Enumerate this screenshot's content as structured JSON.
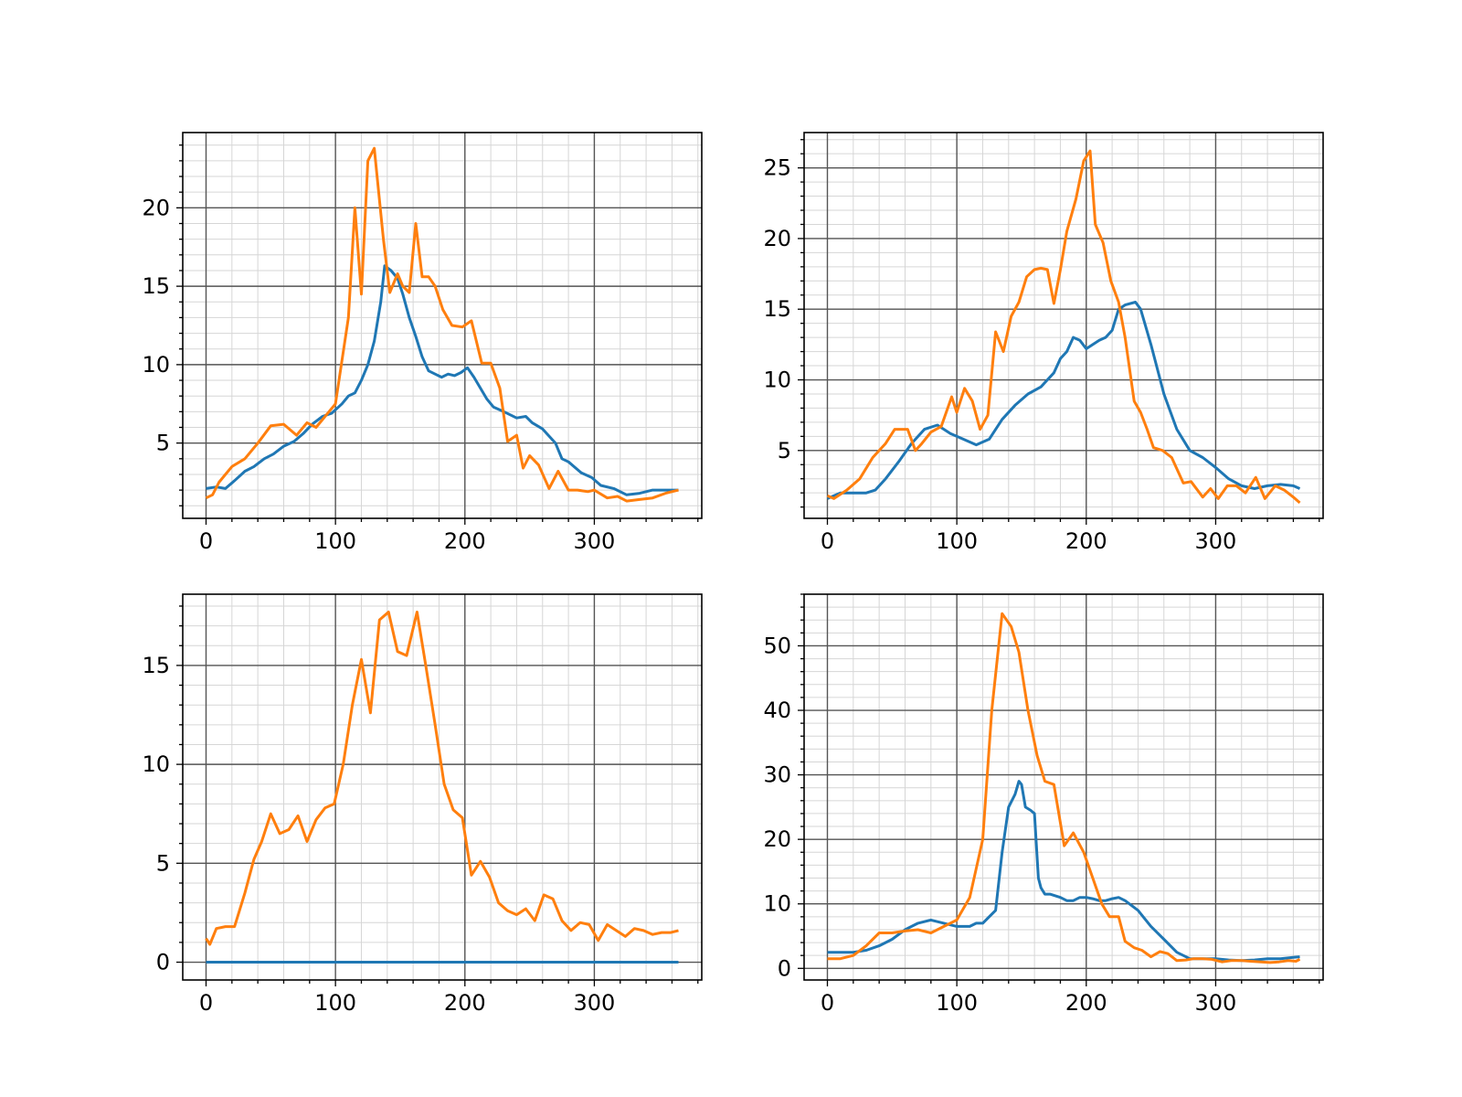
{
  "colors": {
    "series_blue": "#1f77b4",
    "series_orange": "#ff7f0e",
    "major_grid": "#555555",
    "minor_grid": "#d6d6d6"
  },
  "chart_data": [
    {
      "type": "line",
      "grid": "major and minor",
      "xlim": [
        -18,
        383
      ],
      "ylim": [
        0.2,
        24.8
      ],
      "xticks": [
        0,
        100,
        200,
        300
      ],
      "yticks": [
        5,
        10,
        15,
        20
      ],
      "xtick_labels": [
        "0",
        "100",
        "200",
        "300"
      ],
      "ytick_labels": [
        "5",
        "10",
        "15",
        "20"
      ],
      "series": [
        {
          "color": "#1f77b4",
          "x": [
            0,
            8,
            15,
            22,
            30,
            37,
            45,
            52,
            60,
            68,
            75,
            82,
            90,
            97,
            105,
            110,
            115,
            120,
            125,
            130,
            135,
            138,
            143,
            148,
            152,
            157,
            162,
            167,
            172,
            177,
            182,
            187,
            192,
            197,
            202,
            207,
            212,
            217,
            222,
            230,
            240,
            247,
            252,
            260,
            270,
            275,
            280,
            290,
            298,
            305,
            315,
            325,
            335,
            345,
            355,
            365
          ],
          "y": [
            2.1,
            2.2,
            2.1,
            2.6,
            3.2,
            3.5,
            4.0,
            4.3,
            4.8,
            5.1,
            5.6,
            6.2,
            6.7,
            6.9,
            7.5,
            8.0,
            8.2,
            9.0,
            10.0,
            11.5,
            14.0,
            16.3,
            16.0,
            15.5,
            14.5,
            13.0,
            11.8,
            10.5,
            9.6,
            9.4,
            9.2,
            9.4,
            9.3,
            9.5,
            9.8,
            9.2,
            8.5,
            7.8,
            7.3,
            7.0,
            6.6,
            6.7,
            6.3,
            5.9,
            5.0,
            4.0,
            3.8,
            3.1,
            2.8,
            2.3,
            2.1,
            1.7,
            1.8,
            2.0,
            2.0,
            2.0
          ]
        },
        {
          "color": "#ff7f0e",
          "x": [
            0,
            5,
            10,
            15,
            20,
            30,
            40,
            50,
            60,
            70,
            78,
            85,
            95,
            100,
            110,
            115,
            120,
            125,
            130,
            137,
            142,
            148,
            152,
            157,
            162,
            167,
            172,
            177,
            183,
            190,
            198,
            205,
            213,
            220,
            227,
            233,
            240,
            245,
            250,
            257,
            265,
            272,
            280,
            287,
            295,
            300,
            310,
            318,
            325,
            335,
            345,
            355,
            365
          ],
          "y": [
            1.5,
            1.7,
            2.5,
            3.0,
            3.5,
            4.0,
            5.0,
            6.1,
            6.2,
            5.5,
            6.3,
            6.0,
            7.0,
            7.5,
            13.0,
            20.0,
            14.5,
            23.0,
            23.8,
            18.0,
            14.6,
            15.8,
            15.0,
            14.6,
            19.0,
            15.6,
            15.6,
            15.0,
            13.5,
            12.5,
            12.4,
            12.8,
            10.1,
            10.1,
            8.5,
            5.1,
            5.5,
            3.4,
            4.2,
            3.6,
            2.1,
            3.2,
            2.0,
            2.0,
            1.9,
            2.0,
            1.5,
            1.6,
            1.3,
            1.4,
            1.5,
            1.8,
            2.0
          ]
        }
      ]
    },
    {
      "type": "line",
      "grid": "major and minor",
      "xlim": [
        -18,
        383
      ],
      "ylim": [
        0.2,
        27.5
      ],
      "xticks": [
        0,
        100,
        200,
        300
      ],
      "yticks": [
        5,
        10,
        15,
        20,
        25
      ],
      "xtick_labels": [
        "0",
        "100",
        "200",
        "300"
      ],
      "ytick_labels": [
        "5",
        "10",
        "15",
        "20",
        "25"
      ],
      "series": [
        {
          "color": "#1f77b4",
          "x": [
            0,
            10,
            20,
            30,
            37,
            45,
            55,
            65,
            75,
            85,
            95,
            105,
            115,
            125,
            135,
            145,
            155,
            165,
            175,
            180,
            185,
            190,
            195,
            200,
            205,
            210,
            215,
            220,
            225,
            230,
            238,
            242,
            250,
            260,
            270,
            280,
            290,
            300,
            310,
            320,
            330,
            340,
            350,
            360,
            365
          ],
          "y": [
            1.6,
            2.0,
            2.0,
            2.0,
            2.2,
            3.0,
            4.2,
            5.5,
            6.5,
            6.8,
            6.2,
            5.8,
            5.4,
            5.8,
            7.2,
            8.2,
            9.0,
            9.5,
            10.5,
            11.5,
            12.0,
            13.0,
            12.8,
            12.2,
            12.5,
            12.8,
            13.0,
            13.5,
            15.0,
            15.3,
            15.5,
            15.0,
            12.5,
            9.0,
            6.5,
            5.0,
            4.5,
            3.8,
            3.0,
            2.5,
            2.3,
            2.5,
            2.6,
            2.5,
            2.3
          ]
        },
        {
          "color": "#ff7f0e",
          "x": [
            0,
            5,
            15,
            25,
            35,
            45,
            52,
            57,
            62,
            68,
            73,
            80,
            88,
            96,
            100,
            106,
            112,
            118,
            124,
            130,
            136,
            142,
            148,
            154,
            160,
            165,
            170,
            175,
            180,
            185,
            192,
            198,
            203,
            207,
            213,
            219,
            225,
            230,
            237,
            242,
            247,
            252,
            259,
            266,
            275,
            281,
            290,
            296,
            302,
            309,
            316,
            323,
            331,
            338,
            346,
            353,
            360,
            365
          ],
          "y": [
            1.8,
            1.6,
            2.2,
            3.0,
            4.5,
            5.5,
            6.5,
            6.5,
            6.5,
            5.0,
            5.5,
            6.3,
            6.7,
            8.8,
            7.7,
            9.4,
            8.5,
            6.5,
            7.5,
            13.4,
            12.0,
            14.5,
            15.5,
            17.3,
            17.8,
            17.9,
            17.8,
            15.4,
            17.8,
            20.5,
            22.8,
            25.5,
            26.2,
            21.0,
            19.7,
            17.0,
            15.5,
            13.0,
            8.5,
            7.7,
            6.5,
            5.2,
            5.0,
            4.5,
            2.7,
            2.8,
            1.7,
            2.3,
            1.6,
            2.5,
            2.5,
            2.0,
            3.1,
            1.6,
            2.5,
            2.2,
            1.7,
            1.3
          ]
        }
      ]
    },
    {
      "type": "line",
      "grid": "major and minor",
      "xlim": [
        -18,
        383
      ],
      "ylim": [
        -0.9,
        18.6
      ],
      "xticks": [
        0,
        100,
        200,
        300
      ],
      "yticks": [
        0,
        5,
        10,
        15
      ],
      "xtick_labels": [
        "0",
        "100",
        "200",
        "300"
      ],
      "ytick_labels": [
        "0",
        "5",
        "10",
        "15"
      ],
      "series": [
        {
          "color": "#1f77b4",
          "x": [
            0,
            365
          ],
          "y": [
            0.0,
            0.0
          ]
        },
        {
          "color": "#ff7f0e",
          "x": [
            0,
            3,
            8,
            15,
            22,
            30,
            37,
            43,
            50,
            57,
            64,
            71,
            78,
            85,
            92,
            99,
            106,
            113,
            120,
            127,
            134,
            141,
            148,
            155,
            163,
            170,
            177,
            184,
            191,
            198,
            205,
            212,
            219,
            226,
            233,
            240,
            247,
            254,
            261,
            268,
            275,
            282,
            289,
            296,
            303,
            310,
            317,
            324,
            331,
            338,
            345,
            352,
            359,
            365
          ],
          "y": [
            1.2,
            0.9,
            1.7,
            1.8,
            1.8,
            3.5,
            5.2,
            6.1,
            7.5,
            6.5,
            6.7,
            7.4,
            6.1,
            7.2,
            7.8,
            8.0,
            10.0,
            13.0,
            15.3,
            12.6,
            17.3,
            17.7,
            15.7,
            15.5,
            17.7,
            14.9,
            12.0,
            9.0,
            7.7,
            7.3,
            4.4,
            5.1,
            4.3,
            3.0,
            2.6,
            2.4,
            2.7,
            2.1,
            3.4,
            3.2,
            2.1,
            1.6,
            2.0,
            1.9,
            1.1,
            1.9,
            1.6,
            1.3,
            1.7,
            1.6,
            1.4,
            1.5,
            1.5,
            1.6
          ]
        }
      ]
    },
    {
      "type": "line",
      "grid": "major and minor",
      "xlim": [
        -18,
        383
      ],
      "ylim": [
        -1.8,
        58.0
      ],
      "xticks": [
        0,
        100,
        200,
        300
      ],
      "yticks": [
        0,
        10,
        20,
        30,
        40,
        50
      ],
      "xtick_labels": [
        "0",
        "100",
        "200",
        "300"
      ],
      "ytick_labels": [
        "0",
        "10",
        "20",
        "30",
        "40",
        "50"
      ],
      "series": [
        {
          "color": "#1f77b4",
          "x": [
            0,
            10,
            20,
            30,
            40,
            50,
            60,
            70,
            80,
            90,
            100,
            110,
            115,
            120,
            125,
            130,
            135,
            140,
            145,
            148,
            150,
            153,
            157,
            160,
            163,
            165,
            168,
            172,
            180,
            185,
            190,
            195,
            200,
            205,
            210,
            215,
            220,
            225,
            230,
            240,
            250,
            260,
            270,
            280,
            290,
            300,
            310,
            320,
            330,
            340,
            350,
            360,
            365
          ],
          "y": [
            2.5,
            2.5,
            2.5,
            2.8,
            3.5,
            4.5,
            6.0,
            7.0,
            7.5,
            7.0,
            6.5,
            6.5,
            7.0,
            7.0,
            8.0,
            9.0,
            18.0,
            25.0,
            27.0,
            29.0,
            28.5,
            25.0,
            24.5,
            24.0,
            14.0,
            12.5,
            11.5,
            11.5,
            11.0,
            10.5,
            10.5,
            11.0,
            11.0,
            10.8,
            10.5,
            10.5,
            10.8,
            11.0,
            10.5,
            9.0,
            6.5,
            4.5,
            2.5,
            1.5,
            1.5,
            1.5,
            1.3,
            1.2,
            1.3,
            1.5,
            1.5,
            1.7,
            1.8
          ]
        },
        {
          "color": "#ff7f0e",
          "x": [
            0,
            10,
            20,
            30,
            40,
            50,
            60,
            70,
            80,
            90,
            100,
            110,
            120,
            127,
            135,
            142,
            148,
            155,
            162,
            168,
            175,
            183,
            190,
            198,
            205,
            212,
            218,
            225,
            230,
            237,
            243,
            250,
            257,
            263,
            270,
            277,
            283,
            290,
            297,
            305,
            312,
            320,
            327,
            335,
            342,
            349,
            356,
            362,
            365
          ],
          "y": [
            1.5,
            1.5,
            2.0,
            3.5,
            5.5,
            5.5,
            5.8,
            6.0,
            5.5,
            6.5,
            7.5,
            11.0,
            20.0,
            40.0,
            55.0,
            53.0,
            49.0,
            40.0,
            33.0,
            29.0,
            28.5,
            19.0,
            21.0,
            18.0,
            14.0,
            10.0,
            8.0,
            8.0,
            4.2,
            3.2,
            2.8,
            1.8,
            2.6,
            2.3,
            1.2,
            1.3,
            1.5,
            1.5,
            1.4,
            1.0,
            1.2,
            1.2,
            1.1,
            1.0,
            0.9,
            1.0,
            1.2,
            1.1,
            1.4
          ]
        }
      ]
    }
  ]
}
